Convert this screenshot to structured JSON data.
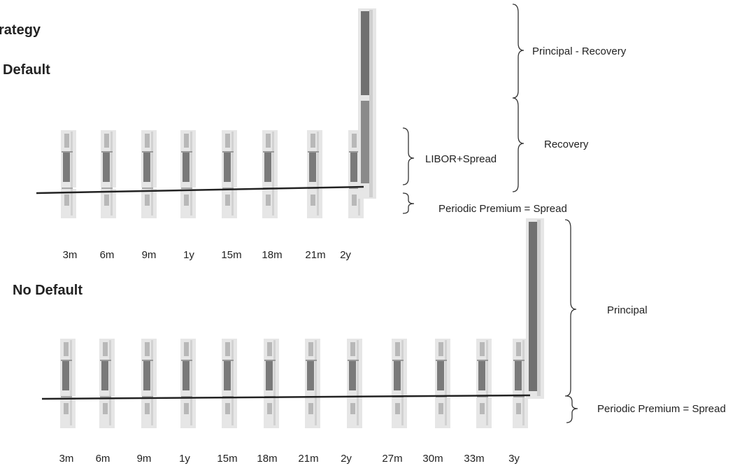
{
  "headings": {
    "strategy": "rategy",
    "default": "Default",
    "no_default": "No Default"
  },
  "default_scenario": {
    "periods": [
      "3m",
      "6m",
      "9m",
      "1y",
      "15m",
      "18m",
      "21m",
      "2y"
    ],
    "labels": {
      "principal_recovery": "Principal - Recovery",
      "recovery": "Recovery",
      "libor_spread": "LIBOR+Spread",
      "periodic_premium": "Periodic Premium  = Spread"
    }
  },
  "no_default_scenario": {
    "periods": [
      "3m",
      "6m",
      "9m",
      "1y",
      "15m",
      "18m",
      "21m",
      "2y",
      "27m",
      "30m",
      "33m",
      "3y"
    ],
    "labels": {
      "principal": "Principal",
      "periodic_premium": "Periodic Premium = Spread"
    }
  },
  "colors": {
    "bar_light": "#b8b8b8",
    "bar_dark": "#7a7a7a",
    "bar_shadow": "#e6e6e6",
    "line": "#222222"
  }
}
